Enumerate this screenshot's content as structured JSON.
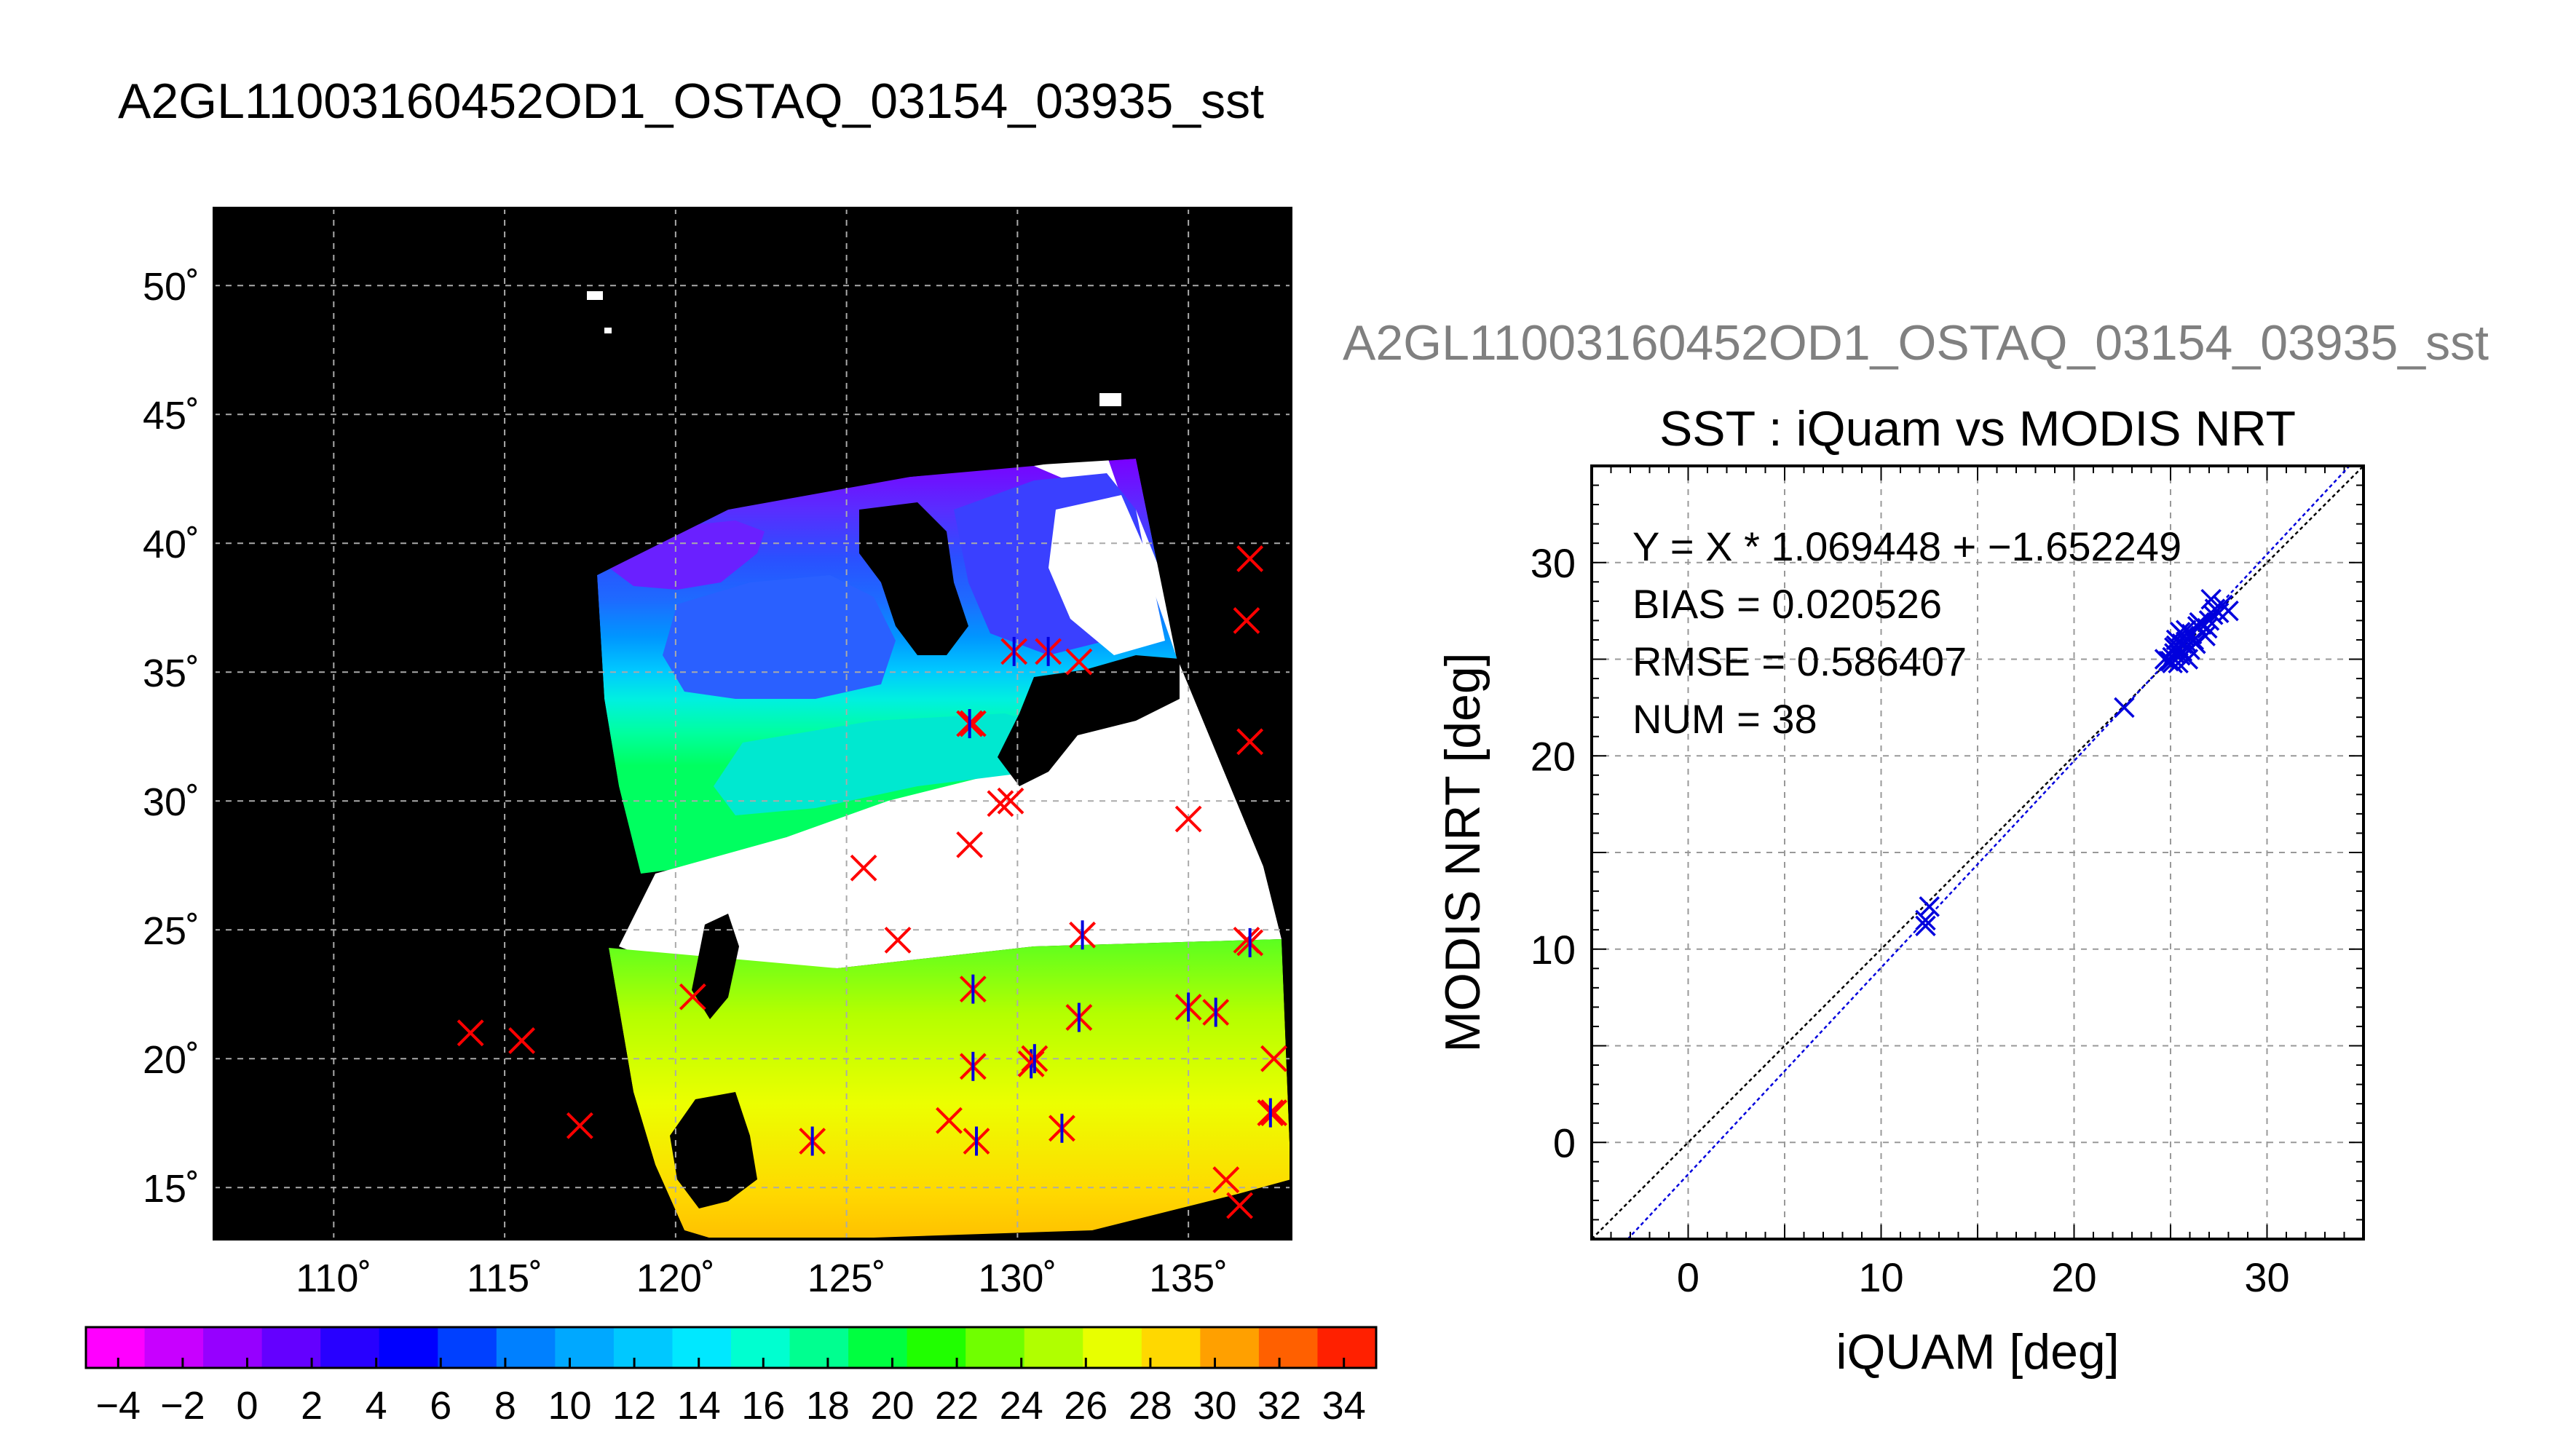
{
  "figure": {
    "main_title": "A2GL11003160452OD1_OSTAQ_03154_03935_sst",
    "scatter_header": "A2GL11003160452OD1_OSTAQ_03154_03935_sst"
  },
  "chart_data": [
    {
      "type": "heatmap",
      "description_kind": "map",
      "lon_range": [
        106.5,
        138
      ],
      "lat_range": [
        13,
        53
      ],
      "x_ticks": [
        110,
        115,
        120,
        125,
        130,
        135
      ],
      "x_tick_labels": [
        "110˚",
        "115˚",
        "120˚",
        "125˚",
        "130˚",
        "135˚"
      ],
      "y_ticks": [
        15,
        20,
        25,
        30,
        35,
        40,
        45,
        50
      ],
      "y_tick_labels": [
        "15˚",
        "20˚",
        "25˚",
        "30˚",
        "35˚",
        "40˚",
        "45˚",
        "50˚"
      ],
      "grid": true,
      "background_color": "#000000",
      "marker_red_color": "#ff0000",
      "marker_blue_color": "#0000dd",
      "red_x_markers": [
        [
          114.0,
          21.0
        ],
        [
          115.5,
          20.7
        ],
        [
          117.2,
          17.4
        ],
        [
          120.5,
          22.4
        ],
        [
          125.5,
          27.4
        ],
        [
          126.5,
          24.6
        ],
        [
          128.6,
          28.3
        ],
        [
          128.7,
          33.0
        ],
        [
          129.5,
          29.9
        ],
        [
          129.8,
          30.0
        ],
        [
          131.8,
          35.4
        ],
        [
          135.0,
          29.3
        ],
        [
          136.8,
          39.4
        ],
        [
          136.7,
          37.0
        ],
        [
          136.8,
          32.3
        ],
        [
          136.7,
          24.6
        ],
        [
          136.5,
          14.3
        ],
        [
          136.1,
          15.3
        ],
        [
          137.5,
          20.0
        ],
        [
          137.5,
          17.9
        ],
        [
          128.0,
          17.6
        ]
      ],
      "asterisk_markers": [
        [
          124.0,
          16.8
        ],
        [
          128.8,
          16.8
        ],
        [
          128.7,
          19.7
        ],
        [
          128.7,
          22.7
        ],
        [
          130.4,
          19.8
        ],
        [
          130.5,
          20.0
        ],
        [
          131.3,
          17.3
        ],
        [
          131.8,
          21.6
        ],
        [
          131.9,
          24.8
        ],
        [
          135.0,
          22.0
        ],
        [
          135.8,
          21.8
        ],
        [
          129.9,
          35.8
        ],
        [
          130.9,
          35.8
        ],
        [
          136.8,
          24.5
        ],
        [
          128.6,
          33.0
        ],
        [
          137.4,
          17.9
        ]
      ]
    },
    {
      "type": "heatmap",
      "description_kind": "colorbar",
      "range": [
        -5,
        35
      ],
      "tick_labels": [
        "−4",
        "−2",
        "0",
        "2",
        "4",
        "6",
        "8",
        "10",
        "12",
        "14",
        "16",
        "18",
        "20",
        "22",
        "24",
        "26",
        "28",
        "30",
        "32",
        "34"
      ],
      "tick_values": [
        -4,
        -2,
        0,
        2,
        4,
        6,
        8,
        10,
        12,
        14,
        16,
        18,
        20,
        22,
        24,
        26,
        28,
        30,
        32,
        34
      ],
      "segment_colors": [
        "#ff00ff",
        "#c800ff",
        "#9600ff",
        "#6400ff",
        "#2800ff",
        "#0000ff",
        "#0040ff",
        "#0080ff",
        "#00a8ff",
        "#00c8ff",
        "#00e8ff",
        "#00ffd0",
        "#00ff90",
        "#00ff40",
        "#20ff00",
        "#70ff00",
        "#b0ff00",
        "#e8ff00",
        "#ffd800",
        "#ffa000",
        "#ff6000",
        "#ff2000"
      ]
    },
    {
      "type": "scatter",
      "title": "SST : iQuam vs MODIS NRT",
      "xlabel": "iQUAM [deg]",
      "ylabel": "MODIS NRT [deg]",
      "xlim": [
        -5,
        35
      ],
      "ylim": [
        -5,
        35
      ],
      "x_ticks": [
        0,
        10,
        20,
        30
      ],
      "y_ticks": [
        0,
        10,
        20,
        30
      ],
      "grid": true,
      "marker_color": "#0000dd",
      "annotations": [
        "Y = X * 1.069448 + −1.652249",
        "BIAS = 0.020526",
        "RMSE = 0.586407",
        "NUM = 38"
      ],
      "fit": {
        "slope": 1.069448,
        "intercept": -1.652249
      },
      "identity_line_color": "#000000",
      "fit_line_color": "#0000dd",
      "points": [
        [
          12.3,
          11.2
        ],
        [
          12.3,
          11.5
        ],
        [
          12.5,
          12.2
        ],
        [
          22.6,
          22.5
        ],
        [
          24.7,
          25.0
        ],
        [
          25.0,
          24.9
        ],
        [
          25.1,
          25.1
        ],
        [
          25.2,
          25.6
        ],
        [
          25.3,
          26.0
        ],
        [
          25.4,
          24.8
        ],
        [
          25.5,
          25.2
        ],
        [
          25.6,
          25.8
        ],
        [
          25.7,
          26.2
        ],
        [
          25.8,
          26.5
        ],
        [
          25.9,
          25.0
        ],
        [
          26.0,
          25.5
        ],
        [
          26.2,
          26.0
        ],
        [
          26.4,
          26.7
        ],
        [
          26.6,
          26.8
        ],
        [
          26.8,
          26.2
        ],
        [
          27.0,
          27.0
        ],
        [
          27.1,
          28.1
        ],
        [
          27.3,
          27.6
        ],
        [
          27.5,
          27.4
        ],
        [
          27.7,
          27.8
        ],
        [
          28.0,
          27.5
        ],
        [
          25.2,
          25.3
        ],
        [
          25.6,
          25.4
        ],
        [
          26.1,
          26.3
        ],
        [
          26.5,
          26.9
        ],
        [
          24.9,
          24.9
        ],
        [
          25.3,
          25.7
        ],
        [
          25.8,
          25.9
        ],
        [
          26.9,
          26.6
        ],
        [
          27.2,
          27.3
        ],
        [
          25.5,
          26.4
        ],
        [
          26.3,
          25.8
        ],
        [
          25.1,
          24.8
        ]
      ]
    }
  ]
}
